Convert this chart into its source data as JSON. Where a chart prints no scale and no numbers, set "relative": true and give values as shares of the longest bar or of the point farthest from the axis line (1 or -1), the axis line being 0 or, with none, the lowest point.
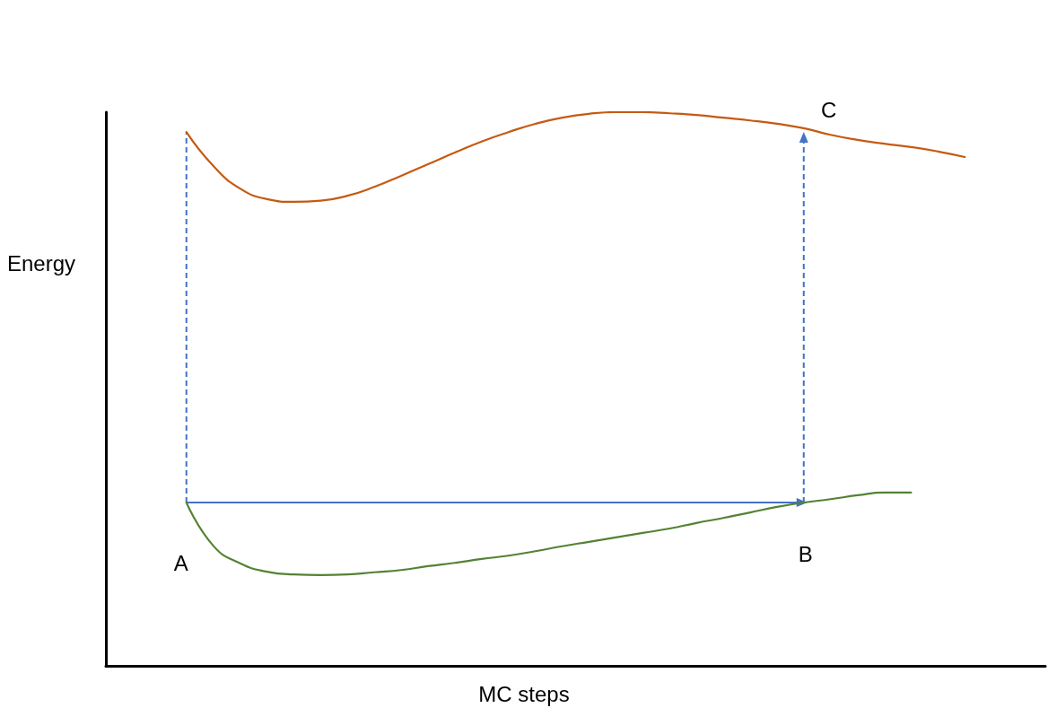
{
  "chart_data": {
    "type": "line",
    "relative": true,
    "xlabel": "MC steps",
    "ylabel": "Energy",
    "categories": [
      null,
      null,
      null,
      null,
      null,
      null,
      null,
      null,
      null,
      null,
      null,
      null,
      null,
      null,
      null,
      null,
      null,
      null,
      null,
      null,
      null,
      null,
      null,
      null,
      null,
      null,
      null,
      null,
      null,
      null,
      null,
      null,
      null,
      null,
      null,
      null
    ],
    "series": [
      {
        "color": "#c55a11",
        "values": [
          null,
          null,
          null,
          0.964,
          0.903,
          0.862,
          0.843,
          0.838,
          0.84,
          0.849,
          0.865,
          0.885,
          0.906,
          0.927,
          0.947,
          0.964,
          0.979,
          0.99,
          0.997,
          1,
          1,
          0.998,
          0.995,
          0.99,
          0.985,
          0.979,
          0.971,
          0.959,
          0.95,
          0.943,
          0.937,
          0.929,
          0.919,
          null,
          null,
          null
        ]
      },
      {
        "color": "#548235",
        "values": [
          null,
          null,
          null,
          0.295,
          0.217,
          0.185,
          0.17,
          0.165,
          0.164,
          0.165,
          0.169,
          0.173,
          0.18,
          0.186,
          0.193,
          0.199,
          0.207,
          0.216,
          0.224,
          0.232,
          0.24,
          0.248,
          0.258,
          0.267,
          0.277,
          0.287,
          0.295,
          0.301,
          0.308,
          0.313,
          0.313,
          null,
          null,
          null,
          null,
          null
        ]
      }
    ],
    "annotations": [
      "A",
      "B",
      "C"
    ],
    "marker": "none",
    "line_style": "solid",
    "grid": false
  }
}
